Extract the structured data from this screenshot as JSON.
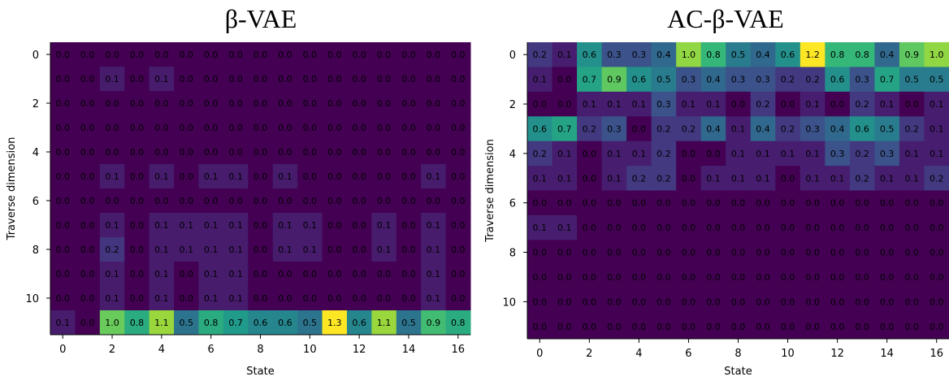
{
  "chart_data": [
    {
      "type": "heatmap",
      "title": "β-VAE",
      "xlabel": "State",
      "ylabel": "Traverse dimension",
      "x_ticks": [
        "0",
        "2",
        "4",
        "6",
        "8",
        "10",
        "12",
        "14",
        "16"
      ],
      "y_ticks": [
        "0",
        "2",
        "4",
        "6",
        "8",
        "10"
      ],
      "colormap": "viridis",
      "vmin": 0,
      "vmax": 1.3,
      "grid": false,
      "values": [
        [
          0.0,
          0.0,
          0.0,
          0.0,
          0.0,
          0.0,
          0.0,
          0.0,
          0.0,
          0.0,
          0.0,
          0.0,
          0.0,
          0.0,
          0.0,
          0.0,
          0.0
        ],
        [
          0.0,
          0.0,
          0.1,
          0.0,
          0.1,
          0.0,
          0.0,
          0.0,
          0.0,
          0.0,
          0.0,
          0.0,
          0.0,
          0.0,
          0.0,
          0.0,
          0.0
        ],
        [
          0.0,
          0.0,
          0.0,
          0.0,
          0.0,
          0.0,
          0.0,
          0.0,
          0.0,
          0.0,
          0.0,
          0.0,
          0.0,
          0.0,
          0.0,
          0.0,
          0.0
        ],
        [
          0.0,
          0.0,
          0.0,
          0.0,
          0.0,
          0.0,
          0.0,
          0.0,
          0.0,
          0.0,
          0.0,
          0.0,
          0.0,
          0.0,
          0.0,
          0.0,
          0.0
        ],
        [
          0.0,
          0.0,
          0.0,
          0.0,
          0.0,
          0.0,
          0.0,
          0.0,
          0.0,
          0.0,
          0.0,
          0.0,
          0.0,
          0.0,
          0.0,
          0.0,
          0.0
        ],
        [
          0.0,
          0.0,
          0.1,
          0.0,
          0.1,
          0.0,
          0.1,
          0.1,
          0.0,
          0.1,
          0.0,
          0.0,
          0.0,
          0.0,
          0.0,
          0.1,
          0.0
        ],
        [
          0.0,
          0.0,
          0.0,
          0.0,
          0.0,
          0.0,
          0.0,
          0.0,
          0.0,
          0.0,
          0.0,
          0.0,
          0.0,
          0.0,
          0.0,
          0.0,
          0.0
        ],
        [
          0.0,
          0.0,
          0.1,
          0.0,
          0.1,
          0.1,
          0.1,
          0.1,
          0.0,
          0.1,
          0.1,
          0.0,
          0.0,
          0.1,
          0.0,
          0.1,
          0.0
        ],
        [
          0.0,
          0.0,
          0.2,
          0.0,
          0.1,
          0.1,
          0.1,
          0.1,
          0.0,
          0.1,
          0.1,
          0.0,
          0.0,
          0.1,
          0.0,
          0.1,
          0.0
        ],
        [
          0.0,
          0.0,
          0.1,
          0.0,
          0.1,
          0.0,
          0.1,
          0.1,
          0.0,
          0.0,
          0.0,
          0.0,
          0.0,
          0.0,
          0.0,
          0.1,
          0.0
        ],
        [
          0.0,
          0.0,
          0.1,
          0.0,
          0.1,
          0.0,
          0.1,
          0.1,
          0.0,
          0.0,
          0.0,
          0.0,
          0.0,
          0.0,
          0.0,
          0.1,
          0.0
        ],
        [
          0.1,
          0.0,
          1.0,
          0.8,
          1.1,
          0.5,
          0.8,
          0.7,
          0.6,
          0.6,
          0.5,
          1.3,
          0.6,
          1.1,
          0.5,
          0.9,
          0.8
        ]
      ]
    },
    {
      "type": "heatmap",
      "title": "AC-β-VAE",
      "xlabel": "State",
      "ylabel": "Traverse dimension",
      "x_ticks": [
        "0",
        "2",
        "4",
        "6",
        "8",
        "10",
        "12",
        "14",
        "16"
      ],
      "y_ticks": [
        "0",
        "2",
        "4",
        "6",
        "8",
        "10"
      ],
      "colormap": "viridis",
      "vmin": 0,
      "vmax": 1.2,
      "grid": false,
      "values": [
        [
          0.2,
          0.1,
          0.6,
          0.3,
          0.3,
          0.4,
          1.0,
          0.8,
          0.5,
          0.4,
          0.6,
          1.2,
          0.8,
          0.8,
          0.4,
          0.9,
          1.0
        ],
        [
          0.1,
          0.0,
          0.7,
          0.9,
          0.6,
          0.5,
          0.3,
          0.4,
          0.3,
          0.3,
          0.2,
          0.2,
          0.6,
          0.3,
          0.7,
          0.5,
          0.5
        ],
        [
          0.0,
          0.0,
          0.1,
          0.1,
          0.1,
          0.3,
          0.1,
          0.1,
          0.0,
          0.2,
          0.0,
          0.1,
          0.0,
          0.2,
          0.1,
          0.0,
          0.1
        ],
        [
          0.6,
          0.7,
          0.2,
          0.3,
          0.0,
          0.2,
          0.2,
          0.4,
          0.1,
          0.4,
          0.2,
          0.3,
          0.4,
          0.6,
          0.5,
          0.2,
          0.1
        ],
        [
          0.2,
          0.1,
          0.0,
          0.1,
          0.1,
          0.2,
          0.0,
          0.0,
          0.1,
          0.1,
          0.1,
          0.1,
          0.3,
          0.2,
          0.3,
          0.1,
          0.1
        ],
        [
          0.1,
          0.1,
          0.0,
          0.1,
          0.2,
          0.2,
          0.0,
          0.1,
          0.1,
          0.1,
          0.0,
          0.1,
          0.1,
          0.2,
          0.1,
          0.1,
          0.2
        ],
        [
          0.0,
          0.0,
          0.0,
          0.0,
          0.0,
          0.0,
          0.0,
          0.0,
          0.0,
          0.0,
          0.0,
          0.0,
          0.0,
          0.0,
          0.0,
          0.0,
          0.0
        ],
        [
          0.1,
          0.1,
          0.0,
          0.0,
          0.0,
          0.0,
          0.0,
          0.0,
          0.0,
          0.0,
          0.0,
          0.0,
          0.0,
          0.0,
          0.0,
          0.0,
          0.0
        ],
        [
          0.0,
          0.0,
          0.0,
          0.0,
          0.0,
          0.0,
          0.0,
          0.0,
          0.0,
          0.0,
          0.0,
          0.0,
          0.0,
          0.0,
          0.0,
          0.0,
          0.0
        ],
        [
          0.0,
          0.0,
          0.0,
          0.0,
          0.0,
          0.0,
          0.0,
          0.0,
          0.0,
          0.0,
          0.0,
          0.0,
          0.0,
          0.0,
          0.0,
          0.0,
          0.0
        ],
        [
          0.0,
          0.0,
          0.0,
          0.0,
          0.0,
          0.0,
          0.0,
          0.0,
          0.0,
          0.0,
          0.0,
          0.0,
          0.0,
          0.0,
          0.0,
          0.0,
          0.0
        ],
        [
          0.0,
          0.0,
          0.0,
          0.0,
          0.0,
          0.0,
          0.0,
          0.0,
          0.0,
          0.0,
          0.0,
          0.0,
          0.0,
          0.0,
          0.0,
          0.0,
          0.0
        ]
      ]
    }
  ]
}
